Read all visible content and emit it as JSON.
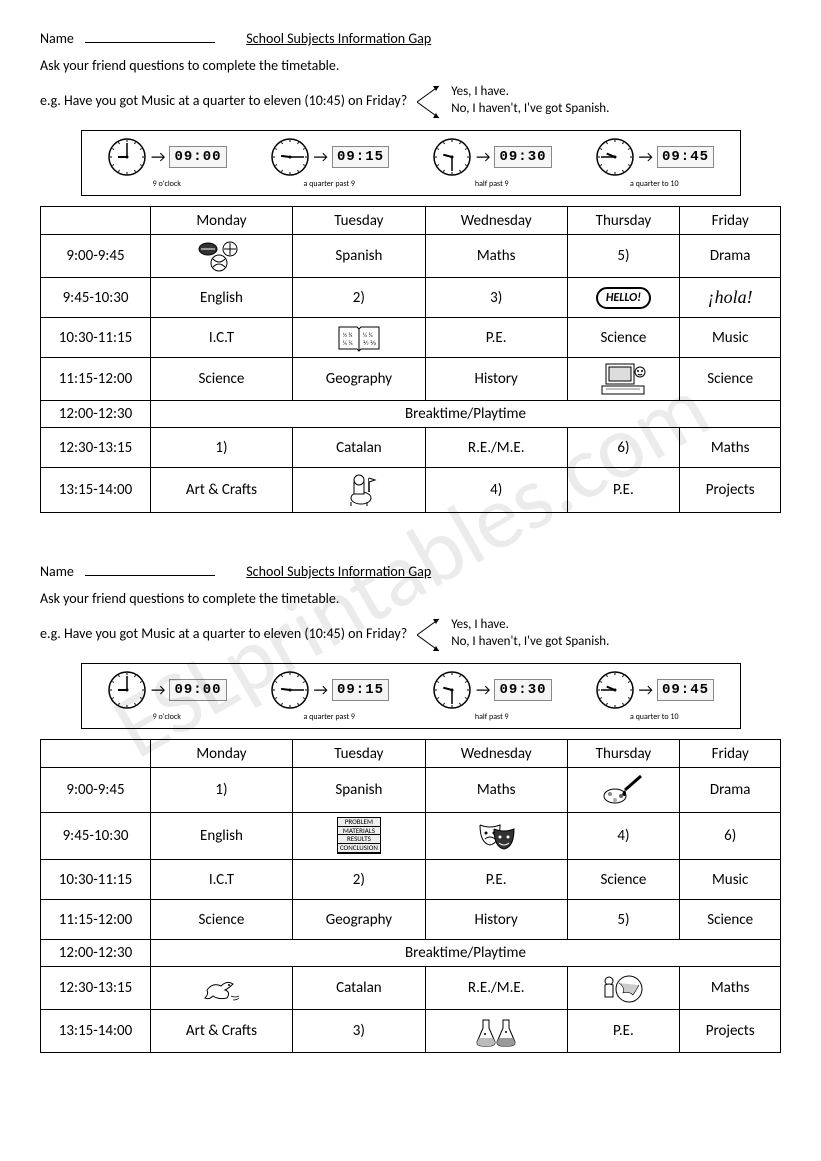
{
  "watermark_text": "ESLprintables.com",
  "worksheet": {
    "name_label": "Name",
    "title": "School Subjects Information Gap",
    "instruction": "Ask your friend questions to complete the timetable.",
    "example_prefix": "e.g.  Have you got Music at a quarter to eleven (10:45) on Friday?",
    "answer_yes": "Yes, I have.",
    "answer_no": "No, I haven't, I've got Spanish."
  },
  "clock_strip": {
    "times": [
      {
        "analog": "9:00",
        "digital": "09:00",
        "caption": "9 o'clock"
      },
      {
        "analog": "9:15",
        "digital": "09:15",
        "caption": "a quarter past 9"
      },
      {
        "analog": "9:30",
        "digital": "09:30",
        "caption": "half past 9"
      },
      {
        "analog": "9:45",
        "digital": "09:45",
        "caption": "a quarter to 10"
      }
    ]
  },
  "days": [
    "Monday",
    "Tuesday",
    "Wednesday",
    "Thursday",
    "Friday"
  ],
  "time_slots": [
    "9:00-9:45",
    "9:45-10:30",
    "10:30-11:15",
    "11:15-12:00",
    "12:00-12:30",
    "12:30-13:15",
    "13:15-14:00"
  ],
  "break_label": "Breaktime/Playtime",
  "table_a": {
    "rows": [
      [
        {
          "type": "icon",
          "name": "sports-balls-icon"
        },
        {
          "type": "text",
          "val": "Spanish"
        },
        {
          "type": "text",
          "val": "Maths"
        },
        {
          "type": "text",
          "val": "5)"
        },
        {
          "type": "text",
          "val": "Drama"
        }
      ],
      [
        {
          "type": "text",
          "val": "English"
        },
        {
          "type": "text",
          "val": "2)"
        },
        {
          "type": "text",
          "val": "3)"
        },
        {
          "type": "icon",
          "name": "hello-bubble-icon"
        },
        {
          "type": "icon",
          "name": "hola-icon"
        }
      ],
      [
        {
          "type": "text",
          "val": "I.C.T"
        },
        {
          "type": "icon",
          "name": "math-book-icon"
        },
        {
          "type": "text",
          "val": "P.E."
        },
        {
          "type": "text",
          "val": "Science"
        },
        {
          "type": "text",
          "val": "Music"
        }
      ],
      [
        {
          "type": "text",
          "val": "Science"
        },
        {
          "type": "text",
          "val": "Geography"
        },
        {
          "type": "text",
          "val": "History"
        },
        {
          "type": "icon",
          "name": "computer-icon"
        },
        {
          "type": "text",
          "val": "Science"
        }
      ],
      "break",
      [
        {
          "type": "text",
          "val": "1)"
        },
        {
          "type": "text",
          "val": "Catalan"
        },
        {
          "type": "text",
          "val": "R.E./M.E."
        },
        {
          "type": "text",
          "val": "6)"
        },
        {
          "type": "text",
          "val": "Maths"
        }
      ],
      [
        {
          "type": "text",
          "val": "Art & Crafts"
        },
        {
          "type": "icon",
          "name": "knight-icon"
        },
        {
          "type": "text",
          "val": "4)"
        },
        {
          "type": "text",
          "val": "P.E."
        },
        {
          "type": "text",
          "val": "Projects"
        }
      ]
    ]
  },
  "table_b": {
    "rows": [
      [
        {
          "type": "text",
          "val": "1)"
        },
        {
          "type": "text",
          "val": "Spanish"
        },
        {
          "type": "text",
          "val": "Maths"
        },
        {
          "type": "icon",
          "name": "paintbrush-icon"
        },
        {
          "type": "text",
          "val": "Drama"
        }
      ],
      [
        {
          "type": "text",
          "val": "English"
        },
        {
          "type": "icon",
          "name": "science-steps-icon"
        },
        {
          "type": "icon",
          "name": "drama-masks-icon"
        },
        {
          "type": "text",
          "val": "4)"
        },
        {
          "type": "text",
          "val": "6)"
        }
      ],
      [
        {
          "type": "text",
          "val": "I.C.T"
        },
        {
          "type": "text",
          "val": "2)"
        },
        {
          "type": "text",
          "val": "P.E."
        },
        {
          "type": "text",
          "val": "Science"
        },
        {
          "type": "text",
          "val": "Music"
        }
      ],
      [
        {
          "type": "text",
          "val": "Science"
        },
        {
          "type": "text",
          "val": "Geography"
        },
        {
          "type": "text",
          "val": "History"
        },
        {
          "type": "text",
          "val": "5)"
        },
        {
          "type": "text",
          "val": "Science"
        }
      ],
      "break",
      [
        {
          "type": "icon",
          "name": "dove-icon"
        },
        {
          "type": "text",
          "val": "Catalan"
        },
        {
          "type": "text",
          "val": "R.E./M.E."
        },
        {
          "type": "icon",
          "name": "globe-person-icon"
        },
        {
          "type": "text",
          "val": "Maths"
        }
      ],
      [
        {
          "type": "text",
          "val": "Art & Crafts"
        },
        {
          "type": "text",
          "val": "3)"
        },
        {
          "type": "icon",
          "name": "flasks-icon"
        },
        {
          "type": "text",
          "val": "P.E."
        },
        {
          "type": "text",
          "val": "Projects"
        }
      ]
    ]
  },
  "icons": {
    "hello_text": "HELLO!",
    "hola_text": "¡hola!",
    "science_steps": [
      "PROBLEM",
      "MATERIALS",
      "RESULTS",
      "CONCLUSION"
    ]
  },
  "colors": {
    "text": "#000000",
    "border": "#000000",
    "background": "#ffffff",
    "watermark": "rgba(0,0,0,0.08)"
  }
}
